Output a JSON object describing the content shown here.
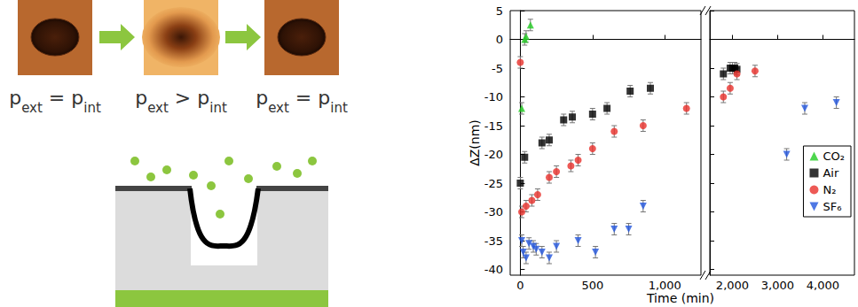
{
  "diagram": {
    "labels": [
      {
        "left": "p",
        "left_sub": "ext",
        "relation": "=",
        "right": "p",
        "right_sub": "int"
      },
      {
        "left": "p",
        "left_sub": "ext",
        "relation": ">",
        "right": "p",
        "right_sub": "int"
      },
      {
        "left": "p",
        "left_sub": "ext",
        "relation": "=",
        "right": "p",
        "right_sub": "int"
      }
    ]
  },
  "chart_data": {
    "type": "scatter",
    "xlabel": "Time (min)",
    "ylabel": "ΔZ(nm)",
    "xlim": [
      [
        -70,
        1250
      ],
      [
        1500,
        4700
      ]
    ],
    "xticks": [
      [
        0,
        500,
        1000
      ],
      [
        2000,
        3000,
        4000
      ]
    ],
    "ylim": [
      -41,
      5
    ],
    "yticks": [
      -40,
      -35,
      -30,
      -25,
      -20,
      -15,
      -10,
      -5,
      0,
      5
    ],
    "grid": false,
    "legend": "right",
    "series": [
      {
        "name": "CO₂",
        "color": "#22cc22",
        "marker": "triangle",
        "x": [
          10,
          30,
          40,
          70
        ],
        "values": [
          -12,
          0,
          0.5,
          2.5
        ],
        "errors": [
          1,
          1,
          1,
          1
        ]
      },
      {
        "name": "Air",
        "color": "#000000",
        "marker": "square",
        "x": [
          0,
          30,
          150,
          200,
          300,
          360,
          500,
          600,
          760,
          900,
          1800,
          1950,
          2000,
          2050,
          2100
        ],
        "values": [
          -25,
          -20.5,
          -18,
          -17.5,
          -14,
          -13.5,
          -13,
          -12,
          -9,
          -8.5,
          -6,
          -5,
          -5,
          -5,
          -5.2
        ],
        "errors": [
          1,
          1,
          1,
          1,
          1,
          1,
          1,
          1,
          1,
          1,
          1,
          1,
          1,
          1,
          1
        ]
      },
      {
        "name": "N₂",
        "color": "#e8302a",
        "marker": "circle",
        "x": [
          0,
          10,
          40,
          80,
          120,
          200,
          250,
          350,
          400,
          500,
          650,
          850,
          1150,
          1800,
          1950,
          2100,
          2500
        ],
        "values": [
          -4,
          -30,
          -29,
          -28,
          -27,
          -24,
          -23,
          -22,
          -21,
          -19,
          -16,
          -15,
          -12,
          -10,
          -8.5,
          -6,
          -5.5
        ],
        "errors": [
          1,
          1,
          1,
          1,
          1,
          1,
          1,
          1,
          1,
          1,
          1,
          1,
          1,
          1,
          1,
          1,
          1
        ]
      },
      {
        "name": "SF₆",
        "color": "#2255dd",
        "marker": "triangle-down",
        "x": [
          10,
          20,
          40,
          60,
          90,
          110,
          150,
          200,
          250,
          400,
          520,
          650,
          750,
          850,
          3200,
          3600,
          4300
        ],
        "values": [
          -35,
          -37,
          -38,
          -35.5,
          -36,
          -36.5,
          -37,
          -38,
          -36,
          -35,
          -37,
          -33,
          -33,
          -29,
          -20,
          -12,
          -11
        ],
        "errors": [
          1,
          1,
          1,
          1,
          1,
          1,
          1,
          1,
          1,
          1,
          1,
          1,
          1,
          1,
          1,
          1,
          1
        ]
      }
    ]
  }
}
